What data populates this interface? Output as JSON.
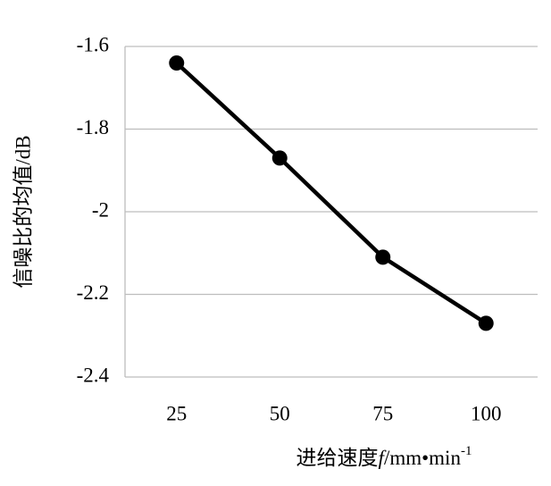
{
  "chart_data": {
    "type": "line",
    "y_label": "信噪比的均值/dB",
    "x_label": {
      "prefix": "进给速度",
      "variable": "f",
      "unit": "/mm•min",
      "exponent": "-1"
    },
    "categories": [
      "25",
      "50",
      "75",
      "100"
    ],
    "series": [
      {
        "color": "#000000",
        "values": [
          -1.64,
          -1.87,
          -2.11,
          -2.27
        ]
      }
    ],
    "ylim": [
      -2.4,
      -1.6
    ],
    "yticks": [
      -2.4,
      -2.2,
      -2,
      -1.8,
      -1.6
    ],
    "grid": true
  }
}
